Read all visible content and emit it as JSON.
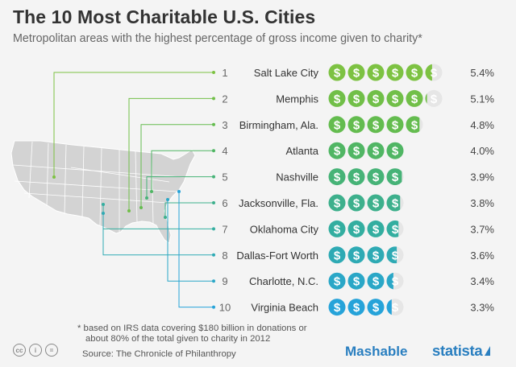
{
  "title": "The 10 Most Charitable U.S. Cities",
  "subtitle": "Metropolitan areas with the highest percentage of gross income given to charity*",
  "footnote_line1": "* based on IRS data covering $180 billion in donations or",
  "footnote_line2": "about 80% of the total given to charity in 2012",
  "source": "Source: The Chronicle of Philanthropy",
  "brand_mashable": "Mashable",
  "brand_statista": "statista",
  "license_icons": [
    "cc-icon",
    "person-icon",
    "equals-icon"
  ],
  "coin_symbol": "$",
  "chart_data": {
    "type": "bar",
    "unit": "%",
    "value_per_coin": 1.0,
    "categories": [
      "Salt Lake City",
      "Memphis",
      "Birmingham, Ala.",
      "Atlanta",
      "Nashville",
      "Jacksonville, Fla.",
      "Oklahoma City",
      "Dallas-Fort Worth",
      "Charlotte, N.C.",
      "Virginia Beach"
    ],
    "ranks": [
      "1",
      "2",
      "3",
      "4",
      "5",
      "6",
      "7",
      "8",
      "9",
      "10"
    ],
    "values": [
      5.4,
      5.1,
      4.8,
      4.0,
      3.9,
      3.8,
      3.7,
      3.6,
      3.4,
      3.3
    ],
    "value_labels": [
      "5.4%",
      "5.1%",
      "4.8%",
      "4.0%",
      "3.9%",
      "3.8%",
      "3.7%",
      "3.6%",
      "3.4%",
      "3.3%"
    ],
    "colors": [
      "#7dc242",
      "#71bf48",
      "#64bc4f",
      "#50b664",
      "#46b377",
      "#3db08c",
      "#33aea0",
      "#2eaab4",
      "#2aa7c7",
      "#26a3d9"
    ]
  }
}
